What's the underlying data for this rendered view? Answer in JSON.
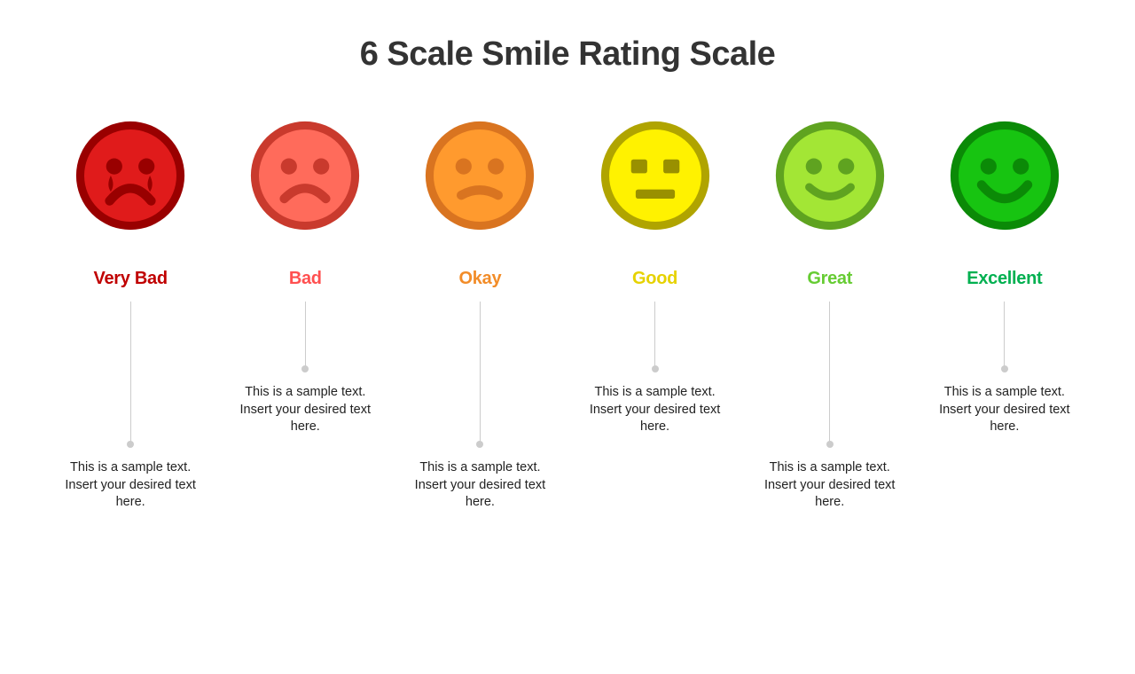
{
  "title": "6 Scale Smile Rating Scale",
  "title_color": "#333333",
  "title_fontsize": 38,
  "background_color": "#ffffff",
  "connector_color": "#cccccc",
  "desc_color": "#222222",
  "desc_fontsize": 14.5,
  "label_fontsize": 20,
  "face_diameter": 130,
  "scale": [
    {
      "label": "Very Bad",
      "label_color": "#c00000",
      "face_fill": "#e01b1b",
      "face_ring": "#990000",
      "feature_color": "#990000",
      "expression": "crying",
      "connector_height": 160,
      "description": "This is a sample text. Insert your desired text here."
    },
    {
      "label": "Bad",
      "label_color": "#ff5050",
      "face_fill": "#ff6b5b",
      "face_ring": "#c93a2d",
      "feature_color": "#c93a2d",
      "expression": "frown",
      "connector_height": 75,
      "description": "This is a sample text. Insert your desired text here."
    },
    {
      "label": "Okay",
      "label_color": "#f28c28",
      "face_fill": "#ff9a2e",
      "face_ring": "#d97420",
      "feature_color": "#d97420",
      "expression": "slight-frown",
      "connector_height": 160,
      "description": "This is a sample text. Insert your desired text here."
    },
    {
      "label": "Good",
      "label_color": "#e6d200",
      "face_fill": "#fff200",
      "face_ring": "#b0a400",
      "feature_color": "#999000",
      "expression": "neutral",
      "connector_height": 75,
      "description": "This is a sample text. Insert your desired text here."
    },
    {
      "label": "Great",
      "label_color": "#66cc33",
      "face_fill": "#a3e635",
      "face_ring": "#5fa320",
      "feature_color": "#5fa320",
      "expression": "smile",
      "connector_height": 160,
      "description": "This is a sample text. Insert your desired text here."
    },
    {
      "label": "Excellent",
      "label_color": "#00b050",
      "face_fill": "#17c411",
      "face_ring": "#0b8a07",
      "feature_color": "#0b8a07",
      "expression": "big-smile",
      "connector_height": 75,
      "description": "This is a sample text. Insert your desired text here."
    }
  ]
}
